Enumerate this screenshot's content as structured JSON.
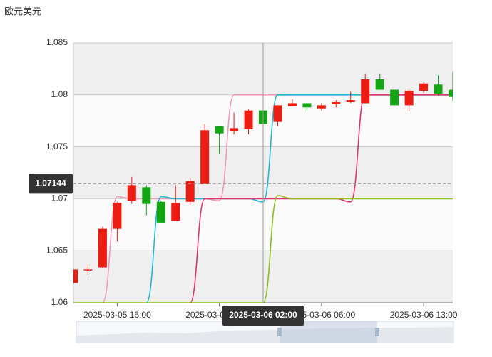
{
  "chart_data": {
    "type": "candlestick",
    "title": "欧元美元",
    "categories": [
      null,
      null,
      null,
      "2025-03-05 16:00",
      null,
      null,
      null,
      null,
      null,
      null,
      "2025-03-05 23:00",
      null,
      null,
      "2025-03-06 02:00",
      null,
      null,
      null,
      "2025-03-06 06:00",
      null,
      null,
      null,
      null,
      null,
      null,
      "2025-03-06 13:00",
      null,
      null
    ],
    "open": [
      1.0619,
      1.0631,
      1.0634,
      1.0671,
      1.0698,
      1.0711,
      1.0697,
      1.0679,
      1.0697,
      1.0714,
      1.077,
      1.0765,
      1.0767,
      1.0785,
      1.0774,
      1.0789,
      1.0792,
      1.0787,
      1.0791,
      1.0793,
      1.0792,
      1.0815,
      1.0805,
      1.079,
      1.0804,
      1.081,
      1.0805
    ],
    "close": [
      1.0632,
      1.0632,
      1.0671,
      1.0696,
      1.0713,
      1.0695,
      1.0677,
      1.0696,
      1.0717,
      1.0766,
      1.0763,
      1.0768,
      1.0785,
      1.0772,
      1.079,
      1.0792,
      1.0788,
      1.079,
      1.0793,
      1.0795,
      1.0815,
      1.0805,
      1.079,
      1.0804,
      1.0811,
      1.0801,
      1.0798
    ],
    "high": [
      1.0632,
      1.0637,
      1.0673,
      1.0697,
      1.0721,
      1.0713,
      1.0698,
      1.0713,
      1.072,
      1.0772,
      1.077,
      1.0783,
      1.0786,
      1.0787,
      1.079,
      1.0796,
      1.0792,
      1.0792,
      1.0795,
      1.0803,
      1.082,
      1.082,
      1.0805,
      1.0805,
      1.0812,
      1.0819,
      1.0822
    ],
    "low": [
      1.0618,
      1.0627,
      1.0633,
      1.0659,
      1.0695,
      1.0684,
      1.0677,
      1.0679,
      1.0694,
      1.0714,
      1.0743,
      1.0762,
      1.0762,
      1.0765,
      1.077,
      1.0789,
      1.0785,
      1.0785,
      1.0788,
      1.0792,
      1.0792,
      1.0805,
      1.079,
      1.0784,
      1.0802,
      1.0799,
      1.0794
    ],
    "up_color": "#eb1c12",
    "down_color": "#14a514",
    "series": [
      {
        "color": "#f29ab8",
        "values": [
          null,
          null,
          1.06,
          1.0702,
          1.07,
          1.07,
          1.07,
          1.07,
          1.07,
          1.07,
          1.0698,
          1.08,
          1.08,
          1.08,
          1.08,
          1.08,
          null,
          null,
          null,
          null,
          null,
          null,
          null,
          null,
          null,
          null,
          null
        ]
      },
      {
        "color": "#1fb8d4",
        "values": [
          null,
          null,
          null,
          null,
          null,
          1.06,
          1.0702,
          1.07,
          1.07,
          1.07,
          1.07,
          1.07,
          1.07,
          1.0697,
          1.08,
          1.08,
          1.08,
          1.08,
          1.08,
          1.08,
          1.08,
          1.08,
          1.08,
          1.08,
          1.08,
          1.08,
          1.08
        ]
      },
      {
        "color": "#e0336a",
        "values": [
          null,
          null,
          null,
          null,
          null,
          null,
          null,
          null,
          1.06,
          1.07,
          1.07,
          1.07,
          1.07,
          1.07,
          1.07,
          1.07,
          1.07,
          1.07,
          1.07,
          1.0697,
          1.08,
          1.08,
          1.08,
          1.08,
          1.08,
          1.08,
          1.08
        ]
      },
      {
        "color": "#8cbf1e",
        "values": [
          1.06,
          1.06,
          1.06,
          1.06,
          1.06,
          1.06,
          1.06,
          1.06,
          1.06,
          1.06,
          1.06,
          1.06,
          1.06,
          1.06,
          1.0703,
          1.07,
          1.07,
          1.07,
          1.07,
          1.07,
          1.07,
          1.07,
          1.07,
          1.07,
          1.07,
          1.07,
          1.07
        ]
      }
    ],
    "axis_pointer": {
      "x": "2025-03-06 02:00",
      "y": 1.07144
    },
    "ylim": [
      1.06,
      1.085
    ],
    "yticks": [
      1.06,
      1.065,
      1.07,
      1.075,
      1.08,
      1.085
    ],
    "grid": true
  }
}
